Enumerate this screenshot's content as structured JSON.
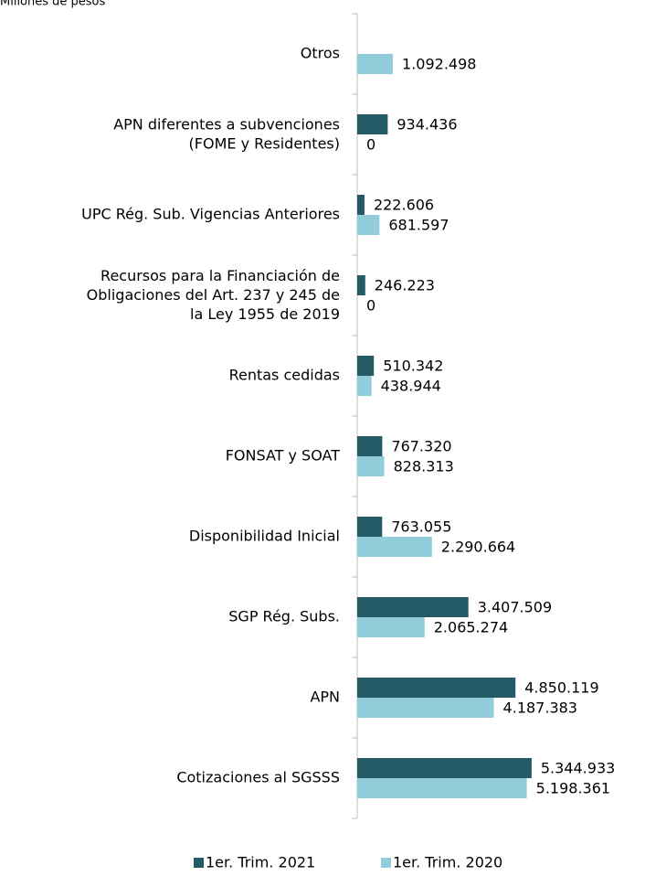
{
  "chart_data": {
    "type": "bar",
    "orientation": "horizontal",
    "subtitle": "Millones de pesos",
    "categories": [
      "Otros",
      "APN diferentes a subvenciones\n(FOME y Residentes)",
      "UPC Rég. Sub. Vigencias Anteriores",
      "Recursos para la Financiación de\nObligaciones del Art. 237 y 245 de\nla Ley 1955 de 2019",
      "Rentas cedidas",
      "FONSAT y SOAT",
      "Disponibilidad Inicial",
      "SGP Rég. Subs.",
      "APN",
      "Cotizaciones al SGSSS"
    ],
    "series": [
      {
        "name": "1er. Trim. 2021",
        "color": "#235a66",
        "values": [
          null,
          934436,
          222606,
          246223,
          510342,
          767320,
          763055,
          3407509,
          4850119,
          5344933
        ],
        "value_labels": [
          null,
          "934.436",
          "222.606",
          "246.223",
          "510.342",
          "767.320",
          "763.055",
          "3.407.509",
          "4.850.119",
          "5.344.933"
        ]
      },
      {
        "name": "1er. Trim. 2020",
        "color": "#92cddc",
        "values": [
          1092498,
          0,
          681597,
          0,
          438944,
          828313,
          2290664,
          2065274,
          4187383,
          5198361
        ],
        "value_labels": [
          "1.092.498",
          "0",
          "681.597",
          "0",
          "438.944",
          "828.313",
          "2.290.664",
          "2.065.274",
          "4.187.383",
          "5.198.361"
        ]
      }
    ],
    "xlim": [
      0,
      5600000
    ],
    "legend": "bottom"
  }
}
